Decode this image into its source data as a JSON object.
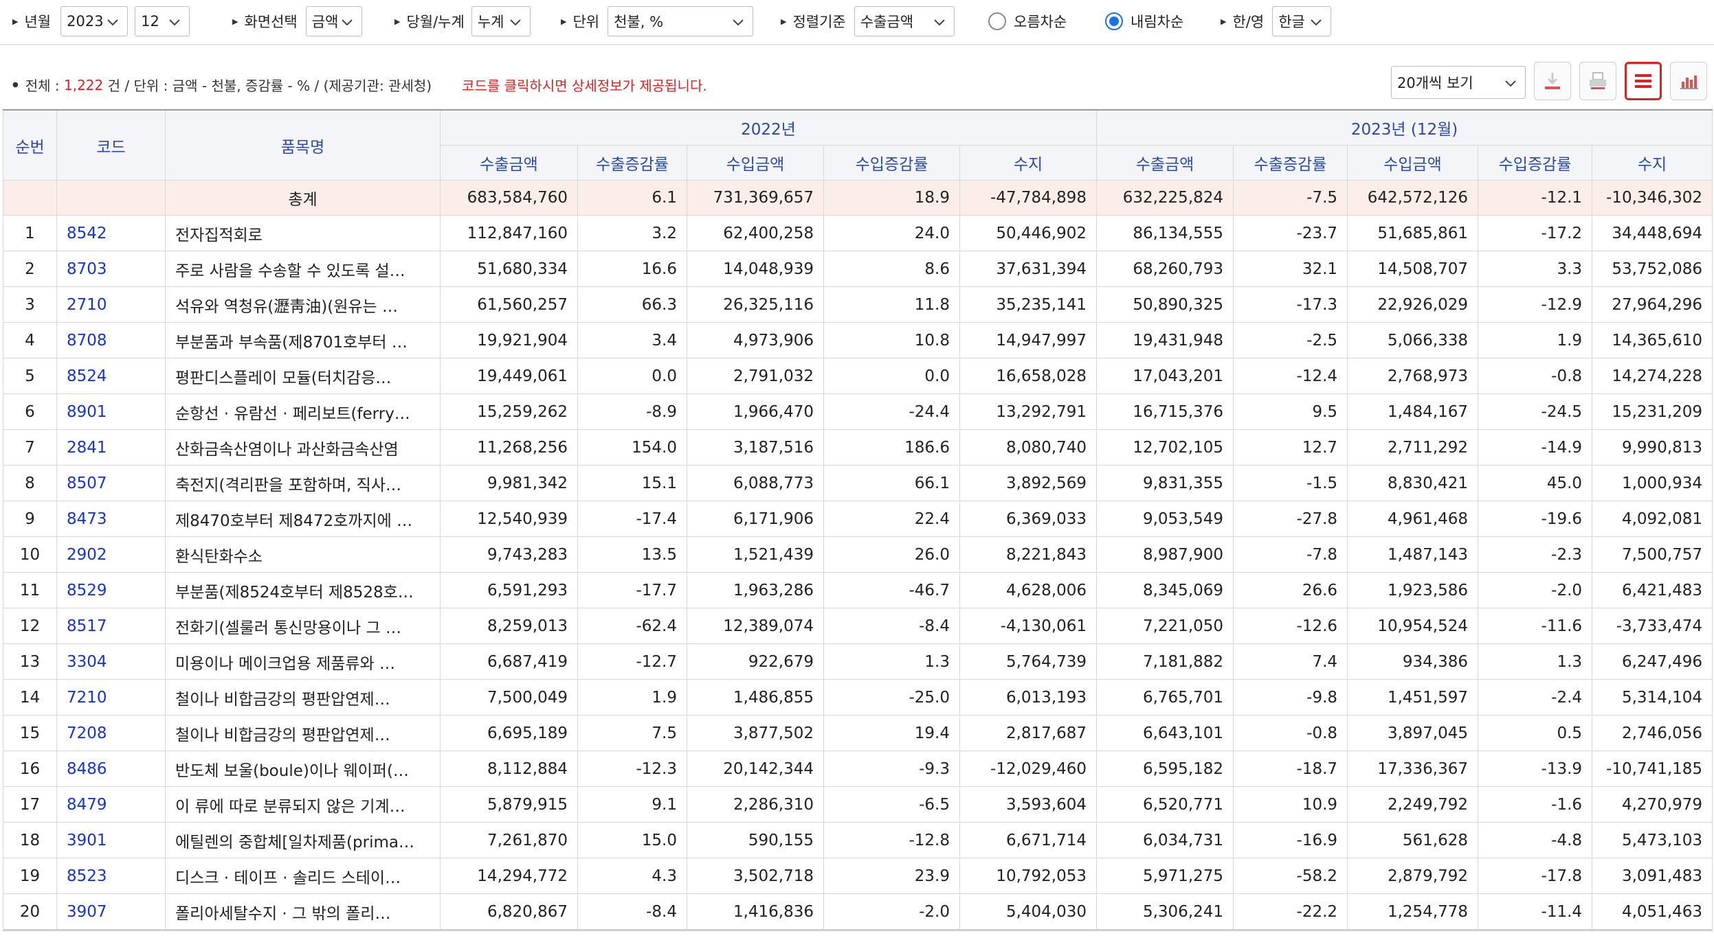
{
  "filters": {
    "year_month": {
      "label": "년월",
      "year": "2023",
      "month": "12"
    },
    "screen": {
      "label": "화면선택",
      "value": "금액"
    },
    "period": {
      "label": "당월/누계",
      "value": "누계"
    },
    "unit": {
      "label": "단위",
      "value": "천불, %"
    },
    "sort": {
      "label": "정렬기준",
      "value": "수출금액"
    },
    "order_asc": {
      "label": "오름차순",
      "checked": false
    },
    "order_desc": {
      "label": "내림차순",
      "checked": true
    },
    "language": {
      "label": "한/영",
      "value": "한글"
    }
  },
  "info": {
    "total_label": "전체 :",
    "total_count": "1,222",
    "total_suffix": "건 / 단위 : 금액 - 천불, 증감률 - % / (제공기관: 관세청)",
    "notice": "코드를 클릭하시면 상세정보가 제공됩니다."
  },
  "toolbar": {
    "per_page": "20개씩 보기",
    "icons": [
      "download-icon",
      "print-icon",
      "list-view-icon",
      "chart-view-icon"
    ]
  },
  "table": {
    "headers": {
      "rank": "순번",
      "code": "코드",
      "name": "품목명",
      "group_2022": "2022년",
      "group_2023": "2023년 (12월)",
      "sub": [
        "수출금액",
        "수출증감률",
        "수입금액",
        "수입증감률",
        "수지"
      ]
    },
    "total": {
      "label": "총계",
      "y2022": [
        "683,584,760",
        "6.1",
        "731,369,657",
        "18.9",
        "-47,784,898"
      ],
      "y2023": [
        "632,225,824",
        "-7.5",
        "642,572,126",
        "-12.1",
        "-10,346,302"
      ]
    },
    "rows": [
      {
        "rank": "1",
        "code": "8542",
        "name": "전자집적회로",
        "v": [
          "112,847,160",
          "3.2",
          "62,400,258",
          "24.0",
          "50,446,902",
          "86,134,555",
          "-23.7",
          "51,685,861",
          "-17.2",
          "34,448,694"
        ]
      },
      {
        "rank": "2",
        "code": "8703",
        "name": "주로 사람을 수송할 수 있도록 설…",
        "v": [
          "51,680,334",
          "16.6",
          "14,048,939",
          "8.6",
          "37,631,394",
          "68,260,793",
          "32.1",
          "14,508,707",
          "3.3",
          "53,752,086"
        ]
      },
      {
        "rank": "3",
        "code": "2710",
        "name": "석유와 역청유(瀝靑油)(원유는 …",
        "v": [
          "61,560,257",
          "66.3",
          "26,325,116",
          "11.8",
          "35,235,141",
          "50,890,325",
          "-17.3",
          "22,926,029",
          "-12.9",
          "27,964,296"
        ]
      },
      {
        "rank": "4",
        "code": "8708",
        "name": "부분품과 부속품(제8701호부터 …",
        "v": [
          "19,921,904",
          "3.4",
          "4,973,906",
          "10.8",
          "14,947,997",
          "19,431,948",
          "-2.5",
          "5,066,338",
          "1.9",
          "14,365,610"
        ]
      },
      {
        "rank": "5",
        "code": "8524",
        "name": "평판디스플레이 모듈(터치감응…",
        "v": [
          "19,449,061",
          "0.0",
          "2,791,032",
          "0.0",
          "16,658,028",
          "17,043,201",
          "-12.4",
          "2,768,973",
          "-0.8",
          "14,274,228"
        ]
      },
      {
        "rank": "6",
        "code": "8901",
        "name": "순항선 · 유람선 · 페리보트(ferry…",
        "v": [
          "15,259,262",
          "-8.9",
          "1,966,470",
          "-24.4",
          "13,292,791",
          "16,715,376",
          "9.5",
          "1,484,167",
          "-24.5",
          "15,231,209"
        ]
      },
      {
        "rank": "7",
        "code": "2841",
        "name": "산화금속산염이나 과산화금속산염",
        "v": [
          "11,268,256",
          "154.0",
          "3,187,516",
          "186.6",
          "8,080,740",
          "12,702,105",
          "12.7",
          "2,711,292",
          "-14.9",
          "9,990,813"
        ]
      },
      {
        "rank": "8",
        "code": "8507",
        "name": "축전지(격리판을 포함하며, 직사…",
        "v": [
          "9,981,342",
          "15.1",
          "6,088,773",
          "66.1",
          "3,892,569",
          "9,831,355",
          "-1.5",
          "8,830,421",
          "45.0",
          "1,000,934"
        ]
      },
      {
        "rank": "9",
        "code": "8473",
        "name": "제8470호부터 제8472호까지에 …",
        "v": [
          "12,540,939",
          "-17.4",
          "6,171,906",
          "22.4",
          "6,369,033",
          "9,053,549",
          "-27.8",
          "4,961,468",
          "-19.6",
          "4,092,081"
        ]
      },
      {
        "rank": "10",
        "code": "2902",
        "name": "환식탄화수소",
        "v": [
          "9,743,283",
          "13.5",
          "1,521,439",
          "26.0",
          "8,221,843",
          "8,987,900",
          "-7.8",
          "1,487,143",
          "-2.3",
          "7,500,757"
        ]
      },
      {
        "rank": "11",
        "code": "8529",
        "name": "부분품(제8524호부터 제8528호…",
        "v": [
          "6,591,293",
          "-17.7",
          "1,963,286",
          "-46.7",
          "4,628,006",
          "8,345,069",
          "26.6",
          "1,923,586",
          "-2.0",
          "6,421,483"
        ]
      },
      {
        "rank": "12",
        "code": "8517",
        "name": "전화기(셀룰러 통신망용이나 그 …",
        "v": [
          "8,259,013",
          "-62.4",
          "12,389,074",
          "-8.4",
          "-4,130,061",
          "7,221,050",
          "-12.6",
          "10,954,524",
          "-11.6",
          "-3,733,474"
        ]
      },
      {
        "rank": "13",
        "code": "3304",
        "name": "미용이나 메이크업용 제품류와 …",
        "v": [
          "6,687,419",
          "-12.7",
          "922,679",
          "1.3",
          "5,764,739",
          "7,181,882",
          "7.4",
          "934,386",
          "1.3",
          "6,247,496"
        ]
      },
      {
        "rank": "14",
        "code": "7210",
        "name": "철이나 비합금강의 평판압연제…",
        "v": [
          "7,500,049",
          "1.9",
          "1,486,855",
          "-25.0",
          "6,013,193",
          "6,765,701",
          "-9.8",
          "1,451,597",
          "-2.4",
          "5,314,104"
        ]
      },
      {
        "rank": "15",
        "code": "7208",
        "name": "철이나 비합금강의 평판압연제…",
        "v": [
          "6,695,189",
          "7.5",
          "3,877,502",
          "19.4",
          "2,817,687",
          "6,643,101",
          "-0.8",
          "3,897,045",
          "0.5",
          "2,746,056"
        ]
      },
      {
        "rank": "16",
        "code": "8486",
        "name": "반도체 보울(boule)이나 웨이퍼(…",
        "v": [
          "8,112,884",
          "-12.3",
          "20,142,344",
          "-9.3",
          "-12,029,460",
          "6,595,182",
          "-18.7",
          "17,336,367",
          "-13.9",
          "-10,741,185"
        ]
      },
      {
        "rank": "17",
        "code": "8479",
        "name": "이 류에 따로 분류되지 않은 기계…",
        "v": [
          "5,879,915",
          "9.1",
          "2,286,310",
          "-6.5",
          "3,593,604",
          "6,520,771",
          "10.9",
          "2,249,792",
          "-1.6",
          "4,270,979"
        ]
      },
      {
        "rank": "18",
        "code": "3901",
        "name": "에틸렌의 중합체[일차제품(prima…",
        "v": [
          "7,261,870",
          "15.0",
          "590,155",
          "-12.8",
          "6,671,714",
          "6,034,731",
          "-16.9",
          "561,628",
          "-4.8",
          "5,473,103"
        ]
      },
      {
        "rank": "19",
        "code": "8523",
        "name": "디스크 · 테이프 · 솔리드 스테이…",
        "v": [
          "14,294,772",
          "4.3",
          "3,502,718",
          "23.9",
          "10,792,053",
          "5,971,275",
          "-58.2",
          "2,879,792",
          "-17.8",
          "3,091,483"
        ]
      },
      {
        "rank": "20",
        "code": "3907",
        "name": "폴리아세탈수지 · 그 밖의 폴리…",
        "v": [
          "6,820,867",
          "-8.4",
          "1,416,836",
          "-2.0",
          "5,404,030",
          "5,306,241",
          "-22.2",
          "1,254,778",
          "-11.4",
          "4,051,463"
        ]
      }
    ]
  }
}
